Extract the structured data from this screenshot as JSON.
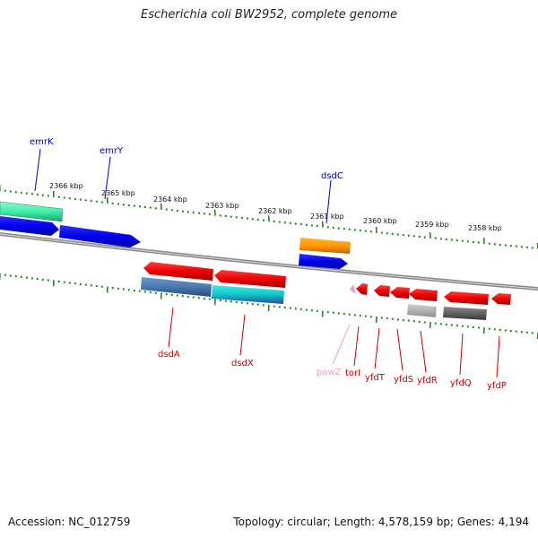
{
  "title": "Escherichia coli BW2952, complete genome",
  "footer": {
    "accession": "Accession: NC_012759",
    "summary": "Topology: circular; Length: 4,578,159 bp; Genes: 4,194"
  },
  "scale_labels": [
    "2366 kbp",
    "2365 kbp",
    "2364 kbp",
    "2363 kbp",
    "2362 kbp",
    "2361 kbp",
    "2360 kbp",
    "2359 kbp",
    "2358 kbp"
  ],
  "forward_genes": [
    {
      "name": "emrK",
      "color": "#3cf0a8"
    },
    {
      "name": "emrY",
      "color": "#0000ee"
    },
    {
      "name": "dsdC",
      "color": "#0000ee"
    }
  ],
  "reverse_genes": [
    {
      "name": "dsdA",
      "color": "#ee0000"
    },
    {
      "name": "dsdX",
      "color": "#ee0000"
    },
    {
      "name": "pawZ",
      "color": "#f59acb"
    },
    {
      "name": "torI",
      "color": "#ee0000"
    },
    {
      "name": "yfdT",
      "color": "#ee0000"
    },
    {
      "name": "yfdS",
      "color": "#ee0000"
    },
    {
      "name": "yfdR",
      "color": "#ee0000"
    },
    {
      "name": "yfdQ",
      "color": "#ee0000"
    },
    {
      "name": "yfdP",
      "color": "#ee0000"
    }
  ],
  "colors": {
    "forward_label": "#0000aa",
    "reverse_label": "#cc0000",
    "tick": "#1a8a1a",
    "backbone": "#8a8a8a"
  }
}
